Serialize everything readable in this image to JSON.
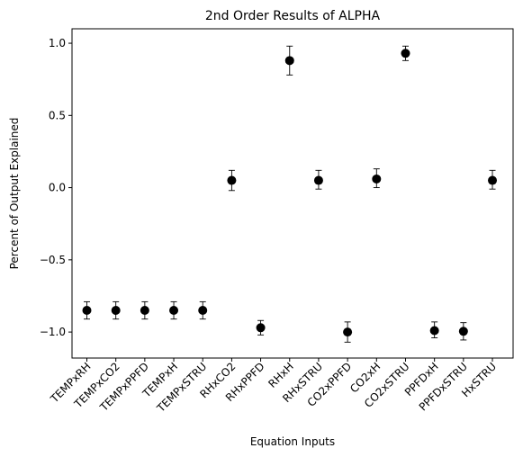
{
  "chart_data": {
    "type": "scatter",
    "title": "2nd Order Results of ALPHA",
    "xlabel": "Equation Inputs",
    "ylabel": "Percent of Output Explained",
    "ylim": [
      -1.18,
      1.1
    ],
    "yticks": [
      -1.0,
      -0.5,
      0.0,
      0.5,
      1.0
    ],
    "ytick_labels": [
      "−1.0",
      "−0.5",
      "0.0",
      "0.5",
      "1.0"
    ],
    "grid": false,
    "marker_color": "#000000",
    "categories": [
      "TEMPxRH",
      "TEMPxCO2",
      "TEMPxPPFD",
      "TEMPxH",
      "TEMPxSTRU",
      "RHxCO2",
      "RHxPPFD",
      "RHxH",
      "RHxSTRU",
      "CO2xPPFD",
      "CO2xH",
      "CO2xSTRU",
      "PPFDxH",
      "PPFDxSTRU",
      "HxSTRU"
    ],
    "values": [
      -0.85,
      -0.85,
      -0.85,
      -0.85,
      -0.85,
      0.05,
      -0.97,
      0.88,
      0.05,
      -1.0,
      0.06,
      0.93,
      -0.99,
      -0.995,
      0.05
    ],
    "err_low": [
      0.06,
      0.06,
      0.06,
      0.06,
      0.06,
      0.07,
      0.05,
      0.1,
      0.06,
      0.07,
      0.06,
      0.05,
      0.05,
      0.06,
      0.06
    ],
    "err_high": [
      0.06,
      0.06,
      0.06,
      0.06,
      0.06,
      0.07,
      0.05,
      0.1,
      0.07,
      0.07,
      0.07,
      0.05,
      0.06,
      0.06,
      0.07
    ]
  }
}
